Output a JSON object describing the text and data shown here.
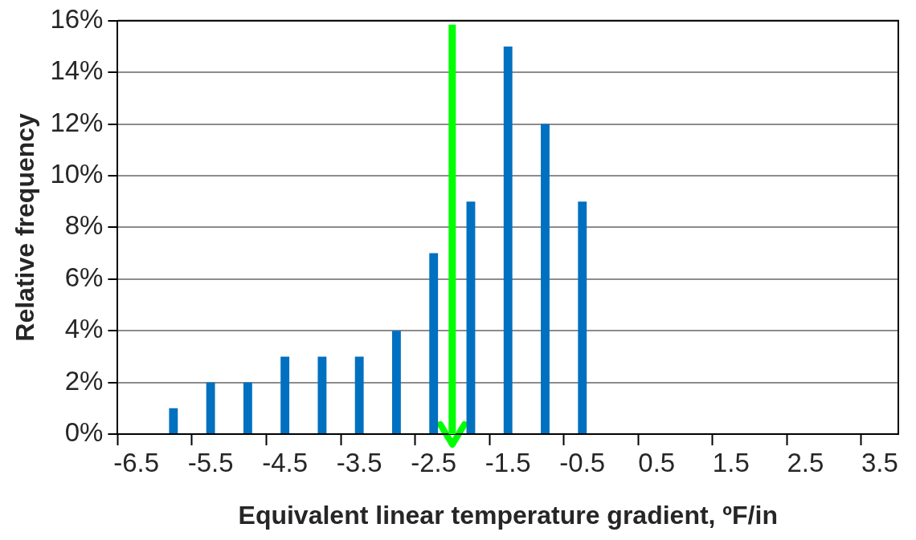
{
  "chart_data": {
    "type": "bar",
    "xlabel": "Equivalent linear temperature gradient, ºF/in",
    "ylabel": "Relative frequency",
    "x": [
      -6.5,
      -6,
      -5.5,
      -5,
      -4.5,
      -4,
      -3.5,
      -3,
      -2.5,
      -2,
      -1.5,
      -1,
      -0.5,
      0,
      0.5,
      1,
      1.5,
      2,
      2.5,
      3,
      3.5
    ],
    "values": [
      0,
      1,
      2,
      2,
      3,
      3,
      3,
      4,
      7,
      9,
      15,
      12,
      9,
      0,
      0,
      0,
      0,
      0,
      0,
      0,
      0
    ],
    "color": "#0070c0",
    "xlim": [
      -6.75,
      3.75
    ],
    "xticks": [
      {
        "value": -6.75,
        "label": null
      },
      -6.5,
      {
        "value": -5.75,
        "label": null
      },
      -5.5,
      {
        "value": -4.75,
        "label": null
      },
      -4.5,
      {
        "value": -3.75,
        "label": null
      },
      -3.5,
      {
        "value": -2.75,
        "label": null
      },
      -2.5,
      {
        "value": -1.75,
        "label": null
      },
      -1.5,
      {
        "value": -0.75,
        "label": null
      },
      -0.5,
      {
        "value": 0.25,
        "label": null
      },
      0.5,
      {
        "value": 1.25,
        "label": null
      },
      1.5,
      {
        "value": 2.25,
        "label": null
      },
      2.5,
      {
        "value": 3.25,
        "label": null
      },
      3.5
    ],
    "ylim": [
      0,
      16
    ],
    "yticks": [
      {
        "value": 0,
        "label": "0%"
      },
      {
        "value": 2,
        "label": "2%"
      },
      {
        "value": 4,
        "label": "4%"
      },
      {
        "value": 6,
        "label": "6%"
      },
      {
        "value": 8,
        "label": "8%"
      },
      {
        "value": 10,
        "label": "10%"
      },
      {
        "value": 12,
        "label": "12%"
      },
      {
        "value": 14,
        "label": "14%"
      },
      {
        "value": 16,
        "label": "16%"
      }
    ],
    "grid": "y",
    "ref_lines": [
      {
        "axis": "x",
        "value": -2.25,
        "color": "#00ff00"
      }
    ]
  }
}
